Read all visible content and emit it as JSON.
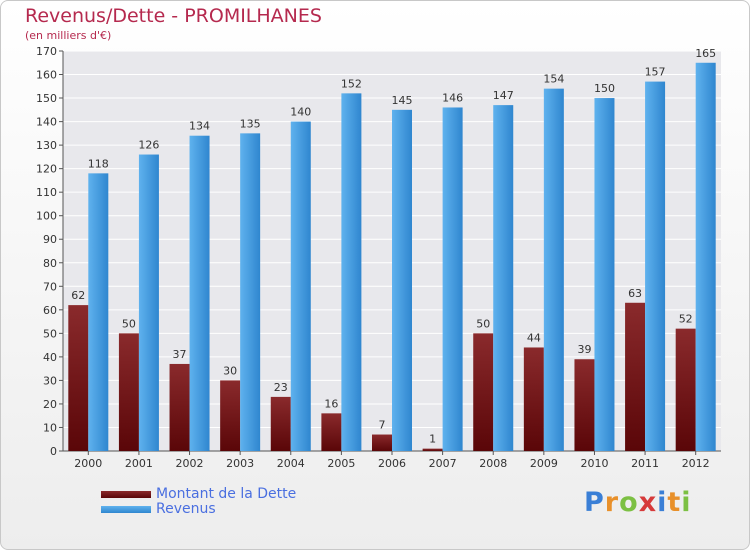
{
  "header": {
    "title": "Revenus/Dette - PROMILHANES",
    "subtitle": "(en milliers d'€)"
  },
  "chart_data": {
    "type": "bar",
    "categories": [
      "2000",
      "2001",
      "2002",
      "2003",
      "2004",
      "2005",
      "2006",
      "2007",
      "2008",
      "2009",
      "2010",
      "2011",
      "2012"
    ],
    "series": [
      {
        "name": "Montant de la Dette",
        "color": "#7a1416",
        "values": [
          62,
          50,
          37,
          30,
          23,
          16,
          7,
          1,
          50,
          44,
          39,
          63,
          52
        ]
      },
      {
        "name": "Revenus",
        "color": "#4aa0e0",
        "values": [
          118,
          126,
          134,
          135,
          140,
          152,
          145,
          146,
          147,
          154,
          150,
          157,
          165
        ]
      }
    ],
    "ylim": [
      0,
      170
    ],
    "yticks": [
      0,
      10,
      20,
      30,
      40,
      50,
      60,
      70,
      80,
      90,
      100,
      110,
      120,
      130,
      140,
      150,
      160,
      170
    ],
    "grid": true,
    "legend_position": "bottom-left"
  },
  "logo": {
    "letters": [
      "P",
      "r",
      "o",
      "x",
      "i",
      "t",
      "i"
    ],
    "colors": [
      "#3a7fd6",
      "#e8902a",
      "#7cc043",
      "#d63a3a",
      "#3a7fd6",
      "#e8902a",
      "#7cc043"
    ]
  }
}
